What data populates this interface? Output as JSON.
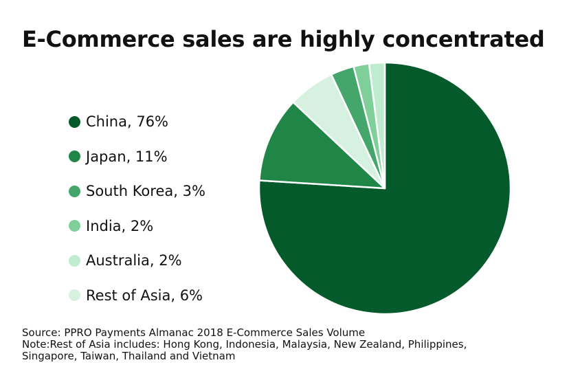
{
  "chart_data": {
    "type": "pie",
    "title": "E-Commerce sales are highly concentrated",
    "slices": [
      {
        "label": "China, 76%",
        "name": "China",
        "value": 76,
        "color": "#045a2b"
      },
      {
        "label": "Japan, 11%",
        "name": "Japan",
        "value": 11,
        "color": "#1f8648"
      },
      {
        "label": "South Korea, 3%",
        "name": "South Korea",
        "value": 3,
        "color": "#44a66a"
      },
      {
        "label": "India, 2%",
        "name": "India",
        "value": 2,
        "color": "#7fcf9b"
      },
      {
        "label": "Australia, 2%",
        "name": "Australia",
        "value": 2,
        "color": "#bfeccf"
      },
      {
        "label": "Rest of Asia, 6%",
        "name": "Rest of Asia",
        "value": 6,
        "color": "#d6f1e0"
      }
    ],
    "slice_order_clockwise_from_top": [
      "China",
      "Japan",
      "Rest of Asia",
      "South Korea",
      "India",
      "Australia"
    ],
    "legend_position": "left"
  },
  "footnote": {
    "source": "Source: PPRO Payments Almanac 2018 E-Commerce Sales Volume",
    "note_line1": "Note:Rest of Asia includes: Hong Kong, Indonesia, Malaysia, New Zealand, Philippines,",
    "note_line2": "Singapore, Taiwan, Thailand and Vietnam"
  }
}
